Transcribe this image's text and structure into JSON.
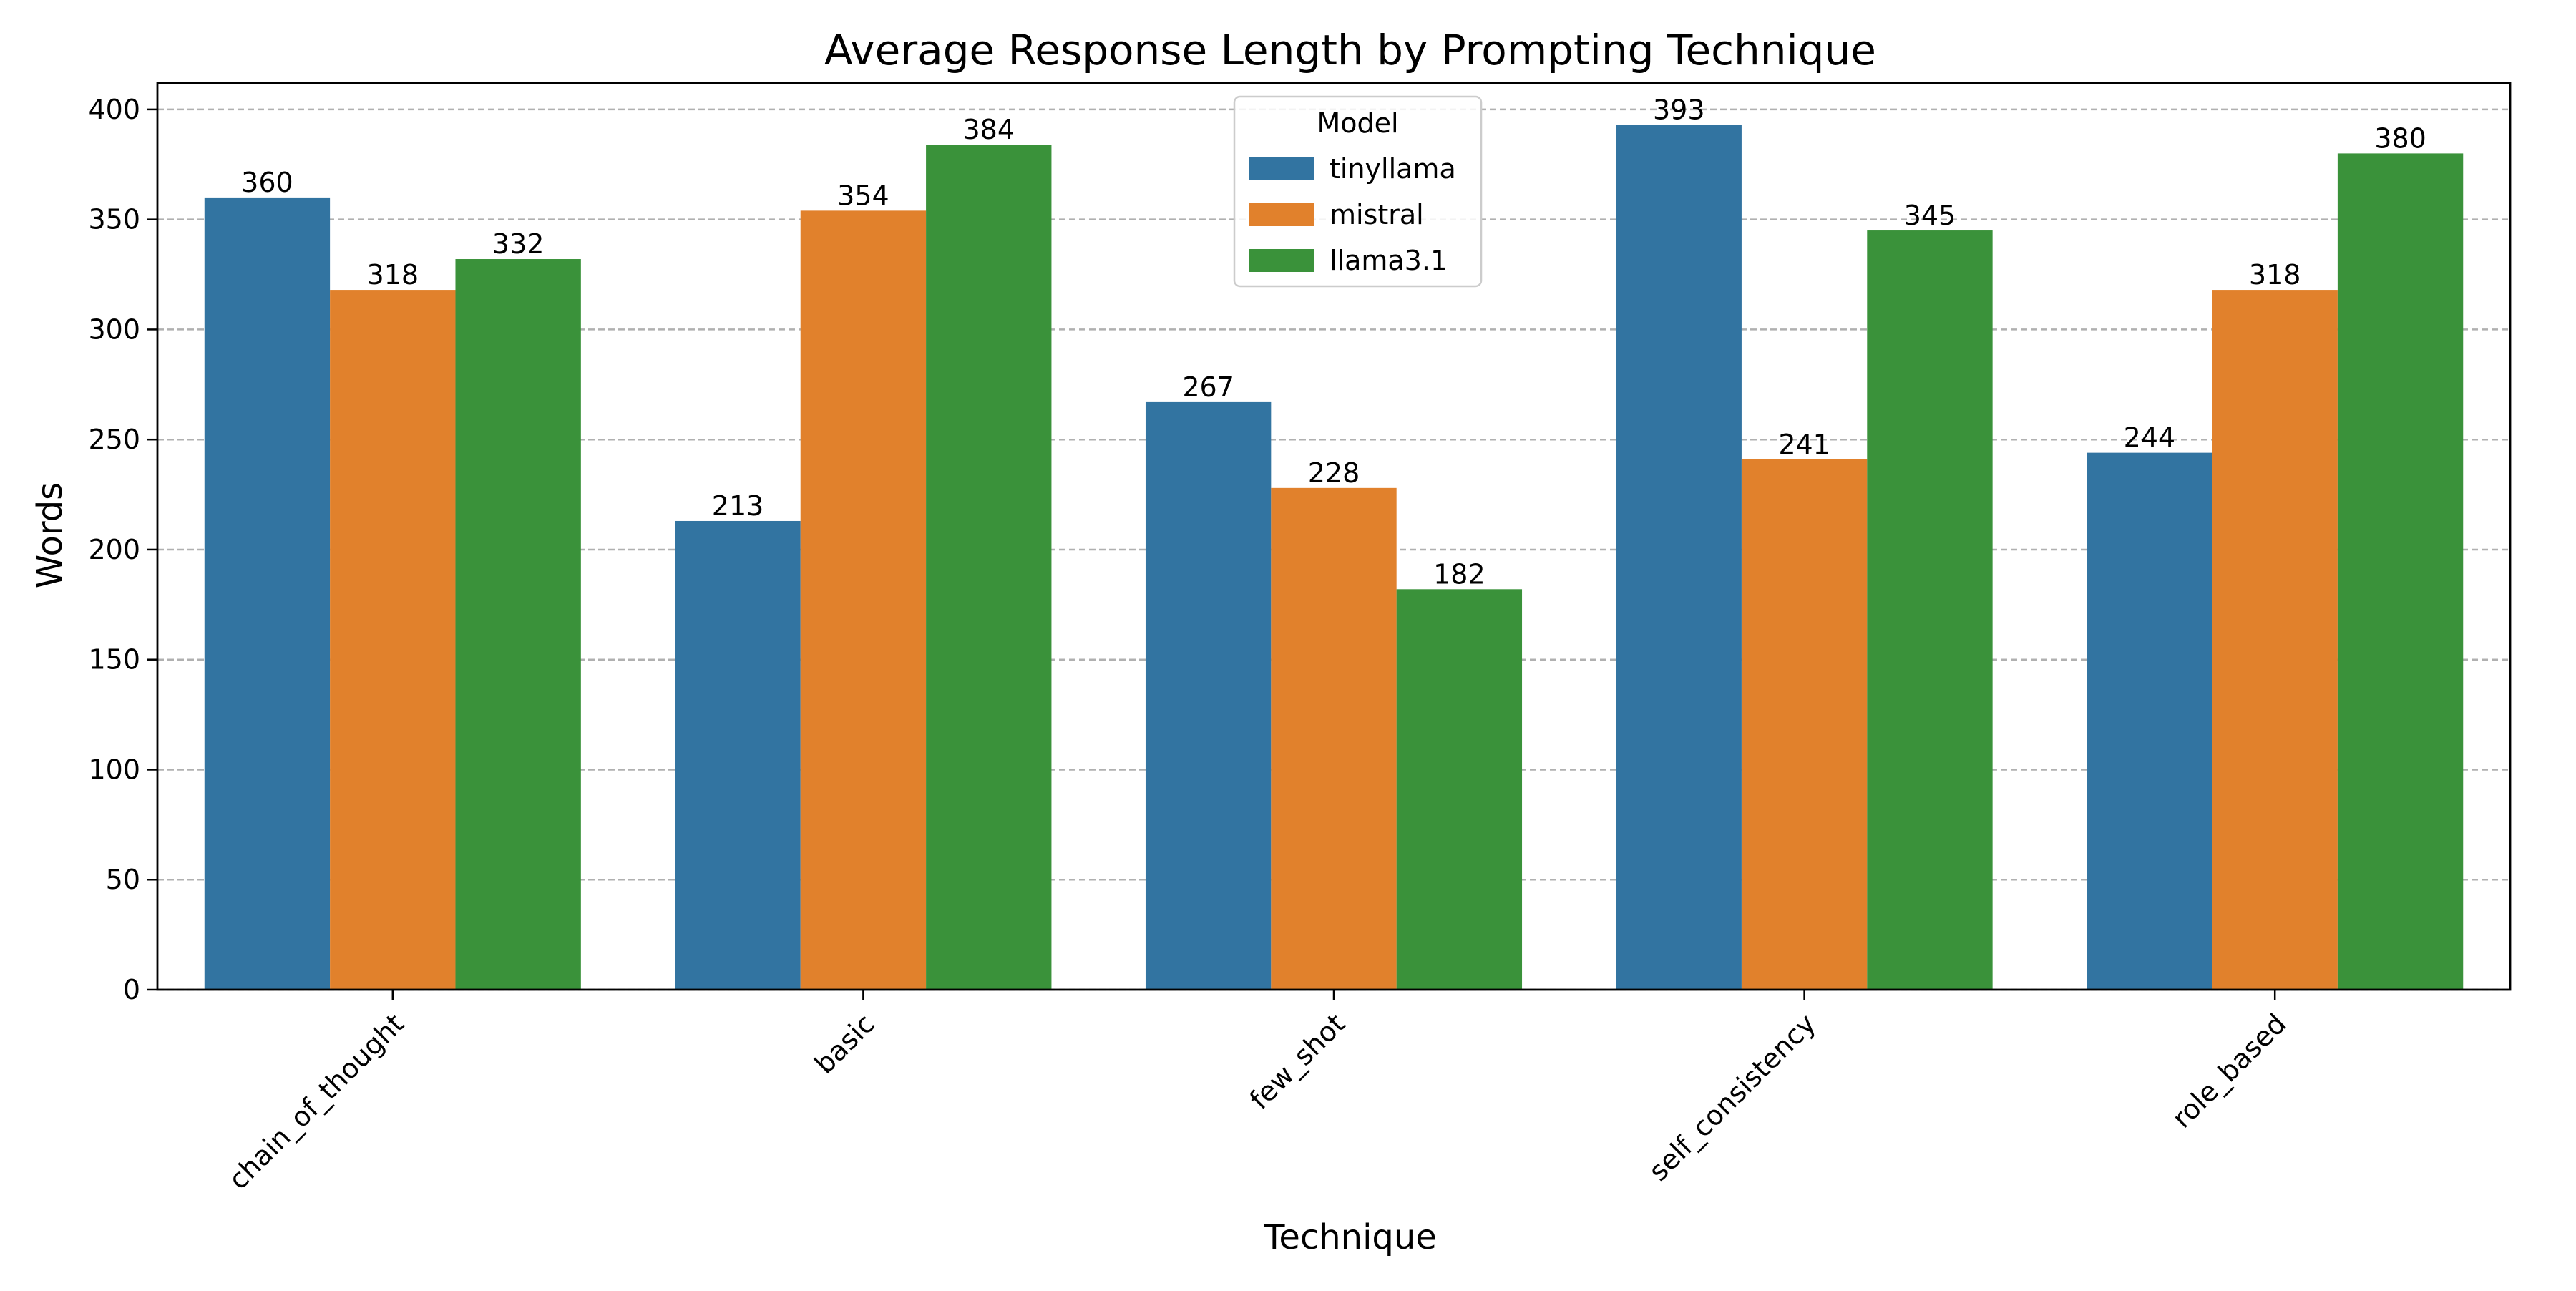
{
  "chart_data": {
    "type": "bar",
    "title": "Average Response Length by Prompting Technique",
    "xlabel": "Technique",
    "ylabel": "Words",
    "categories": [
      "chain_of_thought",
      "basic",
      "few_shot",
      "self_consistency",
      "role_based"
    ],
    "series": [
      {
        "name": "tinyllama",
        "color": "#3274a1",
        "values": [
          360,
          213,
          267,
          393,
          244
        ]
      },
      {
        "name": "mistral",
        "color": "#e1812c",
        "values": [
          318,
          354,
          228,
          241,
          318
        ]
      },
      {
        "name": "llama3.1",
        "color": "#3a923a",
        "values": [
          332,
          384,
          182,
          345,
          380
        ]
      }
    ],
    "ylim": [
      0,
      412
    ],
    "yticks": [
      0,
      50,
      100,
      150,
      200,
      250,
      300,
      350,
      400
    ],
    "grid": {
      "y": true,
      "style": "dashed",
      "color": "#b0b0b0"
    },
    "legend": {
      "title": "Model",
      "placement": "top-center"
    },
    "x_tick_rotation": -45,
    "data_labels": true
  }
}
